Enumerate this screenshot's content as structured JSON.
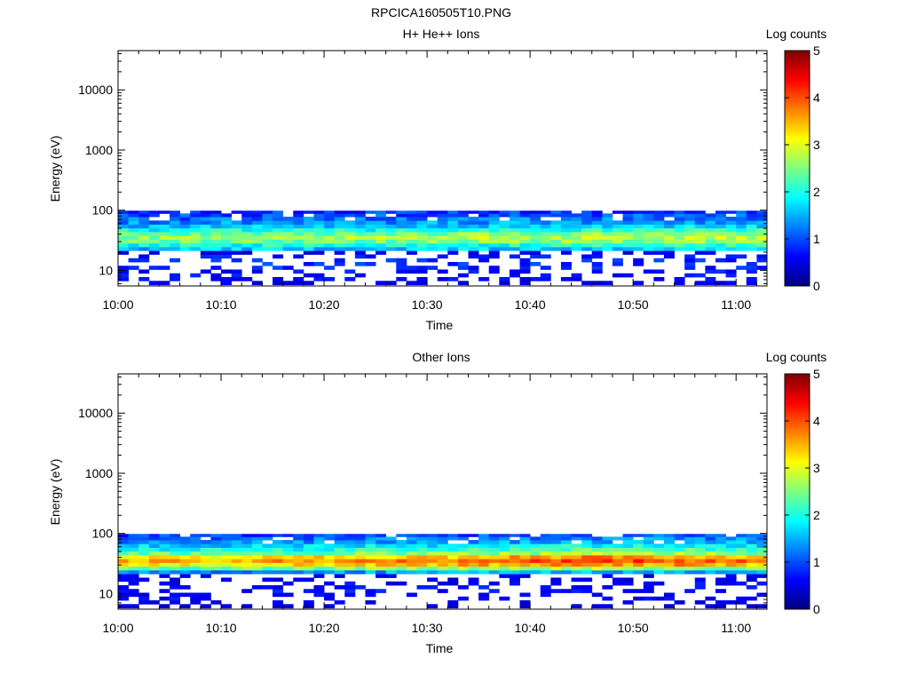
{
  "figure_title": "RPCICA160505T10.PNG",
  "colors": {
    "axis": "#000000",
    "background": "#ffffff",
    "colormap": [
      "#00007f",
      "#0000ff",
      "#007fff",
      "#00ffff",
      "#7fff7f",
      "#ffff00",
      "#ff7f00",
      "#ff0000",
      "#7f0000"
    ]
  },
  "chart_data": [
    {
      "type": "heatmap",
      "title": "H+ He++ Ions",
      "xlabel": "Time",
      "ylabel": "Energy (eV)",
      "yscale": "log",
      "xlim": [
        "10:00",
        "11:03"
      ],
      "ylim": [
        5.5,
        45000
      ],
      "xticks": [
        "10:00",
        "10:10",
        "10:20",
        "10:30",
        "10:40",
        "10:50",
        "11:00"
      ],
      "yticks": [
        "10",
        "100",
        "1000",
        "10000"
      ],
      "colorbar": {
        "label": "Log counts",
        "range": [
          0,
          5
        ],
        "ticks": [
          "0",
          "1",
          "2",
          "3",
          "4",
          "5"
        ]
      },
      "energy_bins_eV": [
        6.2,
        7.2,
        8.3,
        9.6,
        11.1,
        12.8,
        14.8,
        17.1,
        19.8,
        22.9,
        26.4,
        30.5,
        35.2,
        40.7,
        47.0,
        54.3,
        62.7,
        72.4,
        83.6,
        93.0
      ],
      "time_start": "10:00",
      "time_end": "11:02",
      "time_step_min": 1,
      "band_profile_log_counts": [
        0.6,
        0.7,
        0.8,
        0.8,
        0.9,
        1.0,
        0.9,
        0.8,
        0.6,
        1.8,
        2.2,
        2.7,
        2.95,
        2.7,
        2.2,
        1.8,
        1.5,
        1.3,
        1.1,
        0.9
      ],
      "intensity_trend_log_counts": [
        [
          0,
          2.6
        ],
        [
          30,
          2.75
        ],
        [
          62,
          2.9
        ]
      ],
      "fill_fraction_low_energy": 0.35
    },
    {
      "type": "heatmap",
      "title": "Other Ions",
      "xlabel": "Time",
      "ylabel": "Energy (eV)",
      "yscale": "log",
      "xlim": [
        "10:00",
        "11:03"
      ],
      "ylim": [
        5.5,
        45000
      ],
      "xticks": [
        "10:00",
        "10:10",
        "10:20",
        "10:30",
        "10:40",
        "10:50",
        "11:00"
      ],
      "yticks": [
        "10",
        "100",
        "1000",
        "10000"
      ],
      "colorbar": {
        "label": "Log counts",
        "range": [
          0,
          5
        ],
        "ticks": [
          "0",
          "1",
          "2",
          "3",
          "4",
          "5"
        ]
      },
      "energy_bins_eV": [
        6.2,
        7.2,
        8.3,
        9.6,
        11.1,
        12.8,
        14.8,
        17.1,
        19.8,
        22.9,
        26.4,
        30.5,
        35.2,
        40.7,
        47.0,
        54.3,
        62.7,
        72.4,
        83.6,
        93.0
      ],
      "time_start": "10:00",
      "time_end": "11:02",
      "time_step_min": 1,
      "band_profile_log_counts": [
        0.5,
        0.6,
        0.7,
        0.7,
        0.8,
        0.8,
        0.7,
        0.6,
        0.6,
        1.3,
        2.3,
        3.1,
        3.4,
        3.1,
        2.3,
        1.9,
        1.6,
        1.3,
        1.1,
        0.9
      ],
      "intensity_trend_log_counts": [
        [
          0,
          3.0
        ],
        [
          30,
          3.3
        ],
        [
          47,
          3.6
        ],
        [
          62,
          3.3
        ]
      ],
      "fill_fraction_low_energy": 0.3
    }
  ]
}
